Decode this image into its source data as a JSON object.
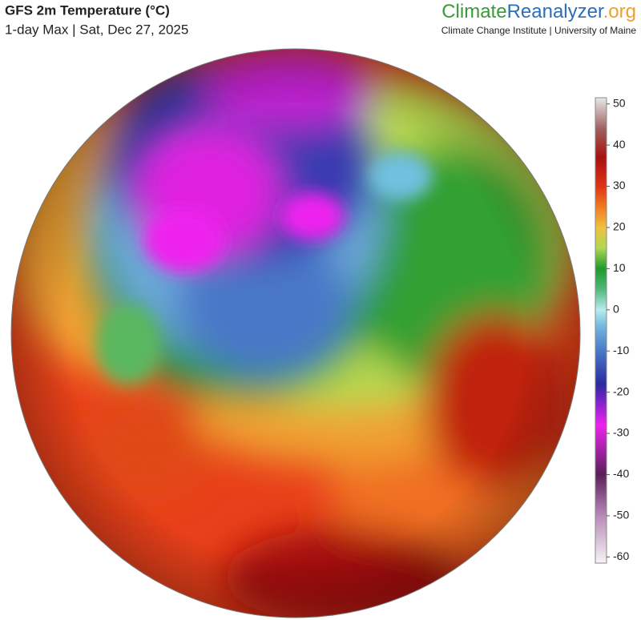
{
  "header": {
    "title": "GFS 2m Temperature (°C)",
    "subtitle": "1-day Max | Sat, Dec 27, 2025"
  },
  "logo": {
    "parts": [
      {
        "text": "Climate",
        "color": "#3a9a3a"
      },
      {
        "text": "Reanalyzer",
        "color": "#2a6fbb"
      },
      {
        "text": ".org",
        "color": "#f0a030"
      }
    ],
    "tagline": "Climate Change Institute | University of Maine"
  },
  "colorbar": {
    "lim": [
      -61.5,
      51.5
    ],
    "ticks": [
      50,
      40,
      30,
      20,
      10,
      0,
      -10,
      -20,
      -30,
      -40,
      -50,
      -60
    ],
    "stops": [
      {
        "value": -61.5,
        "color": "#f4f4f4"
      },
      {
        "value": -50,
        "color": "#b88ab8"
      },
      {
        "value": -40,
        "color": "#5a1e5a"
      },
      {
        "value": -33,
        "color": "#b022b0"
      },
      {
        "value": -28,
        "color": "#ee22ee"
      },
      {
        "value": -22,
        "color": "#7a22c8"
      },
      {
        "value": -18,
        "color": "#2a2aa0"
      },
      {
        "value": -10,
        "color": "#4a78c8"
      },
      {
        "value": -4,
        "color": "#70b8e0"
      },
      {
        "value": 0,
        "color": "#b8ecec"
      },
      {
        "value": 5,
        "color": "#50b878"
      },
      {
        "value": 10,
        "color": "#1e9a2e"
      },
      {
        "value": 15,
        "color": "#b0d850"
      },
      {
        "value": 20,
        "color": "#f0c040"
      },
      {
        "value": 25,
        "color": "#f07a20"
      },
      {
        "value": 30,
        "color": "#e03414"
      },
      {
        "value": 37,
        "color": "#a81010"
      },
      {
        "value": 44,
        "color": "#a06060"
      },
      {
        "value": 51.5,
        "color": "#e8e8e8"
      }
    ]
  }
}
